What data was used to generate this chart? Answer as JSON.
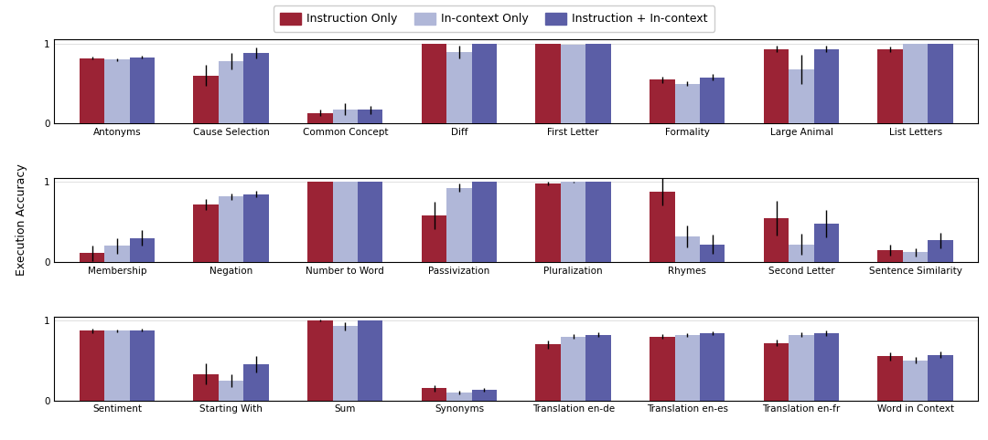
{
  "row1": {
    "categories": [
      "Antonyms",
      "Cause Selection",
      "Common Concept",
      "Diff",
      "First Letter",
      "Formality",
      "Large Animal",
      "List Letters"
    ],
    "instruction_only": [
      0.82,
      0.6,
      0.13,
      1.0,
      1.0,
      0.55,
      0.93,
      0.93
    ],
    "incontext_only": [
      0.8,
      0.78,
      0.18,
      0.9,
      0.99,
      0.5,
      0.68,
      1.0
    ],
    "instruction_incontext": [
      0.83,
      0.88,
      0.17,
      1.0,
      1.0,
      0.58,
      0.93,
      1.0
    ],
    "err_instruction_only": [
      0.02,
      0.13,
      0.04,
      0.0,
      0.0,
      0.04,
      0.04,
      0.03
    ],
    "err_incontext_only": [
      0.02,
      0.1,
      0.07,
      0.08,
      0.0,
      0.03,
      0.18,
      0.0
    ],
    "err_instruction_incontext": [
      0.02,
      0.07,
      0.05,
      0.0,
      0.0,
      0.04,
      0.04,
      0.0
    ]
  },
  "row2": {
    "categories": [
      "Membership",
      "Negation",
      "Number to Word",
      "Passivization",
      "Pluralization",
      "Rhymes",
      "Second Letter",
      "Sentence Similarity"
    ],
    "instruction_only": [
      0.11,
      0.72,
      1.0,
      0.58,
      0.98,
      0.88,
      0.55,
      0.15
    ],
    "incontext_only": [
      0.2,
      0.82,
      1.0,
      0.93,
      1.0,
      0.32,
      0.22,
      0.12
    ],
    "instruction_incontext": [
      0.3,
      0.85,
      1.0,
      1.0,
      1.0,
      0.22,
      0.48,
      0.27
    ],
    "err_instruction_only": [
      0.1,
      0.07,
      0.0,
      0.17,
      0.02,
      0.17,
      0.22,
      0.07
    ],
    "err_incontext_only": [
      0.1,
      0.04,
      0.0,
      0.05,
      0.01,
      0.14,
      0.13,
      0.05
    ],
    "err_instruction_incontext": [
      0.1,
      0.04,
      0.0,
      0.0,
      0.0,
      0.12,
      0.17,
      0.1
    ]
  },
  "row3": {
    "categories": [
      "Sentiment",
      "Starting With",
      "Sum",
      "Synonyms",
      "Translation en-de",
      "Translation en-es",
      "Translation en-fr",
      "Word in Context"
    ],
    "instruction_only": [
      0.87,
      0.33,
      1.0,
      0.15,
      0.7,
      0.8,
      0.72,
      0.55
    ],
    "incontext_only": [
      0.87,
      0.25,
      0.93,
      0.1,
      0.8,
      0.82,
      0.82,
      0.5
    ],
    "instruction_incontext": [
      0.88,
      0.45,
      1.0,
      0.13,
      0.82,
      0.84,
      0.84,
      0.57
    ],
    "err_instruction_only": [
      0.03,
      0.13,
      0.01,
      0.04,
      0.05,
      0.03,
      0.04,
      0.05
    ],
    "err_incontext_only": [
      0.02,
      0.08,
      0.05,
      0.02,
      0.03,
      0.02,
      0.03,
      0.04
    ],
    "err_instruction_incontext": [
      0.02,
      0.1,
      0.0,
      0.02,
      0.03,
      0.02,
      0.03,
      0.04
    ]
  },
  "colors": {
    "instruction_only": "#9B2335",
    "incontext_only": "#B0B7D8",
    "instruction_incontext": "#5B5EA6"
  },
  "legend_labels": [
    "Instruction Only",
    "In-context Only",
    "Instruction + In-context"
  ],
  "ylabel": "Execution Accuracy",
  "ylim": [
    0,
    1.05
  ],
  "yticks": [
    0,
    1
  ],
  "bar_width": 0.22,
  "background_color": "#ffffff",
  "tick_fontsize": 7.5,
  "label_fontsize": 8.5
}
